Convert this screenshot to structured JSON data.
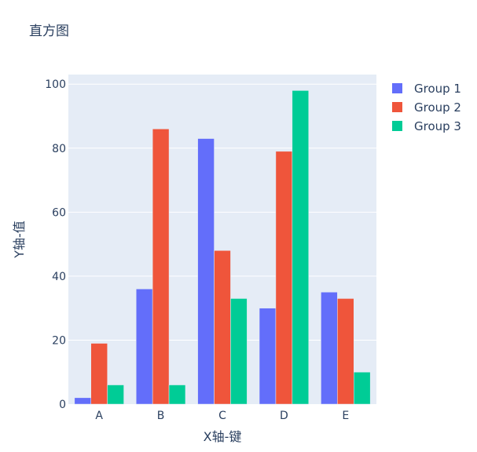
{
  "chart_data": {
    "type": "bar",
    "title": "直方图",
    "xlabel": "X轴-键",
    "ylabel": "Y轴-值",
    "categories": [
      "A",
      "B",
      "C",
      "D",
      "E"
    ],
    "ylim": [
      0,
      103
    ],
    "yticks": [
      0,
      20,
      40,
      60,
      80,
      100
    ],
    "grid": true,
    "legend_position": "top-right",
    "series": [
      {
        "name": "Group 1",
        "color": "#636efa",
        "values": [
          2,
          36,
          83,
          30,
          35
        ]
      },
      {
        "name": "Group 2",
        "color": "#ef553b",
        "values": [
          19,
          86,
          48,
          79,
          33
        ]
      },
      {
        "name": "Group 3",
        "color": "#00cc96",
        "values": [
          6,
          6,
          33,
          98,
          10
        ]
      }
    ],
    "colors": {
      "plot_background": "#e5ecf6",
      "gridline": "#ffffff",
      "text": "#2a3f5f"
    }
  }
}
